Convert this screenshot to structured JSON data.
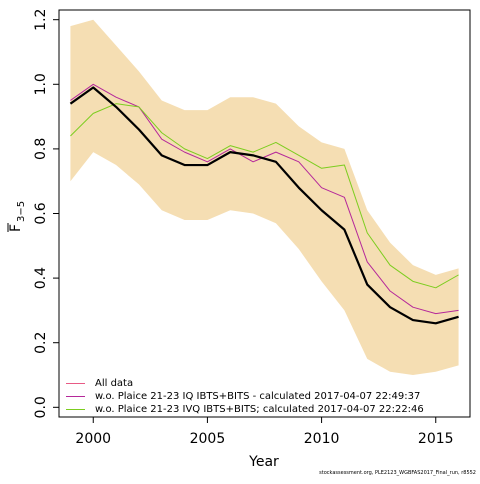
{
  "chart_data": {
    "type": "line",
    "xlabel": "Year",
    "ylabel": "F̄3−5",
    "ylabel_main": "F",
    "ylabel_sub": "3−5",
    "xlim": [
      1998.5,
      2016.5
    ],
    "ylim": [
      -0.03,
      1.23
    ],
    "x_ticks": [
      2000,
      2005,
      2010,
      2015
    ],
    "y_ticks": [
      0.0,
      0.2,
      0.4,
      0.6,
      0.8,
      1.0,
      1.2
    ],
    "x_tick_labels": [
      "2000",
      "2005",
      "2010",
      "2015"
    ],
    "y_tick_labels": [
      "0.0",
      "0.2",
      "0.4",
      "0.6",
      "0.8",
      "1.0",
      "1.2"
    ],
    "x": [
      1999,
      2000,
      2001,
      2002,
      2003,
      2004,
      2005,
      2006,
      2007,
      2008,
      2009,
      2010,
      2011,
      2012,
      2013,
      2014,
      2015,
      2016
    ],
    "band": {
      "color": "#f5deb3",
      "lower": [
        0.7,
        0.79,
        0.75,
        0.69,
        0.61,
        0.58,
        0.58,
        0.61,
        0.6,
        0.57,
        0.49,
        0.39,
        0.3,
        0.15,
        0.11,
        0.1,
        0.11,
        0.13
      ],
      "upper": [
        1.18,
        1.2,
        1.12,
        1.04,
        0.95,
        0.92,
        0.92,
        0.96,
        0.96,
        0.94,
        0.87,
        0.82,
        0.8,
        0.61,
        0.51,
        0.44,
        0.41,
        0.43
      ]
    },
    "series": [
      {
        "name": "All data",
        "color": "#000000",
        "width": 2.2,
        "legend_color": "#e85a85",
        "values": [
          0.94,
          0.99,
          0.93,
          0.86,
          0.78,
          0.75,
          0.75,
          0.79,
          0.78,
          0.76,
          0.68,
          0.61,
          0.55,
          0.38,
          0.31,
          0.27,
          0.26,
          0.28
        ]
      },
      {
        "name": "w.o. Plaice 21-23 IQ IBTS+BITS - calculated 2017-04-07 22:49:37",
        "color": "#b5289a",
        "width": 1,
        "values": [
          0.95,
          1.0,
          0.96,
          0.93,
          0.83,
          0.79,
          0.76,
          0.8,
          0.76,
          0.79,
          0.76,
          0.68,
          0.65,
          0.45,
          0.36,
          0.31,
          0.29,
          0.3
        ]
      },
      {
        "name": "w.o. Plaice 21-23 IVQ IBTS+BITS; calculated 2017-04-07 22:22:46",
        "color": "#7ccd1f",
        "width": 1,
        "values": [
          0.84,
          0.91,
          0.94,
          0.93,
          0.85,
          0.8,
          0.77,
          0.81,
          0.79,
          0.82,
          0.78,
          0.74,
          0.75,
          0.54,
          0.44,
          0.39,
          0.37,
          0.41
        ]
      }
    ],
    "legend": {
      "placement": "bottom-left",
      "entries": [
        {
          "label": "All data",
          "color": "#e85a85"
        },
        {
          "label": "w.o. Plaice 21-23 IQ IBTS+BITS - calculated 2017-04-07 22:49:37",
          "color": "#b5289a"
        },
        {
          "label": "w.o. Plaice 21-23 IVQ IBTS+BITS; calculated 2017-04-07 22:22:46",
          "color": "#7ccd1f"
        }
      ]
    },
    "grid": false
  },
  "credit": "stockassessment.org, PLE2123_WGBFAS2017_Final_run, r8552"
}
